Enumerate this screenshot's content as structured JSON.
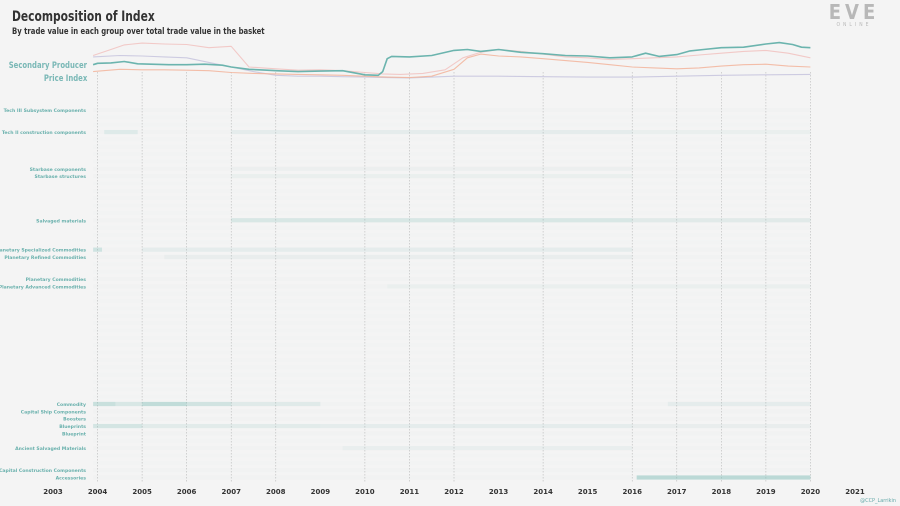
{
  "title": "Decomposition of Index",
  "subtitle": "By trade value in each group over total trade value in the basket",
  "logo": {
    "main": "EVE",
    "sub": "ONLINE"
  },
  "credit": "@CCP_Larrikin",
  "legend": {
    "line1": "Secondary Producer",
    "line2": "Price Index"
  },
  "colors": {
    "index_line": "#6bb4ae",
    "pink_line": "#f2c4c2",
    "orange_line": "#f2b39a",
    "lavender_line": "#c9c7df",
    "heat": "#7fbfb8",
    "label": "#6ab1ad",
    "faint_label": "#c8dede"
  },
  "chart_data": [
    {
      "type": "line",
      "title": "",
      "xlabel": "",
      "ylabel": "",
      "x_range": [
        2003,
        2021
      ],
      "series": [
        {
          "name": "Secondary Producer Price Index",
          "x": [
            2003.9,
            2004.0,
            2004.3,
            2004.6,
            2004.9,
            2005.2,
            2005.6,
            2006.0,
            2006.4,
            2006.8,
            2007.0,
            2007.4,
            2007.8,
            2008.0,
            2008.5,
            2009.0,
            2009.5,
            2010.0,
            2010.3,
            2010.4,
            2010.5,
            2010.6,
            2011.0,
            2011.5,
            2012.0,
            2012.3,
            2012.6,
            2013.0,
            2013.5,
            2014.0,
            2014.5,
            2015.0,
            2015.5,
            2016.0,
            2016.3,
            2016.6,
            2017.0,
            2017.3,
            2017.6,
            2018.0,
            2018.5,
            2019.0,
            2019.3,
            2019.6,
            2019.8,
            2020.0
          ],
          "y": [
            0.55,
            0.58,
            0.59,
            0.62,
            0.57,
            0.56,
            0.55,
            0.55,
            0.56,
            0.54,
            0.5,
            0.45,
            0.43,
            0.42,
            0.4,
            0.41,
            0.42,
            0.33,
            0.32,
            0.4,
            0.68,
            0.73,
            0.72,
            0.75,
            0.86,
            0.88,
            0.84,
            0.88,
            0.82,
            0.79,
            0.75,
            0.74,
            0.7,
            0.72,
            0.8,
            0.73,
            0.77,
            0.85,
            0.88,
            0.92,
            0.93,
            1.0,
            1.03,
            0.99,
            0.93,
            0.92
          ]
        },
        {
          "name": "pink",
          "x": [
            2003.9,
            2004.3,
            2004.6,
            2005.0,
            2005.5,
            2006.0,
            2006.5,
            2007.0,
            2007.4,
            2008.0,
            2008.5,
            2009.0,
            2009.5,
            2010.0,
            2010.4,
            2010.8,
            2011.3,
            2011.8,
            2012.2,
            2012.6,
            2013.0,
            2013.5,
            2014.0,
            2014.5,
            2015.0,
            2015.5,
            2016.0,
            2016.5,
            2017.0,
            2017.5,
            2018.0,
            2018.5,
            2019.0,
            2019.5,
            2020.0
          ],
          "y": [
            0.75,
            0.88,
            0.98,
            1.02,
            1.0,
            0.99,
            0.92,
            0.95,
            0.5,
            0.46,
            0.43,
            0.44,
            0.42,
            0.38,
            0.35,
            0.34,
            0.36,
            0.44,
            0.7,
            0.82,
            0.88,
            0.84,
            0.78,
            0.72,
            0.7,
            0.66,
            0.68,
            0.7,
            0.72,
            0.76,
            0.8,
            0.84,
            0.86,
            0.8,
            0.7
          ]
        },
        {
          "name": "orange",
          "x": [
            2003.9,
            2004.5,
            2005.0,
            2005.5,
            2006.0,
            2006.5,
            2007.0,
            2007.5,
            2008.0,
            2008.5,
            2009.0,
            2009.5,
            2010.0,
            2010.5,
            2011.0,
            2011.5,
            2012.0,
            2012.3,
            2012.6,
            2013.0,
            2013.5,
            2014.0,
            2014.5,
            2015.0,
            2015.5,
            2016.0,
            2016.5,
            2017.0,
            2017.5,
            2018.0,
            2018.5,
            2019.0,
            2019.5,
            2020.0
          ],
          "y": [
            0.4,
            0.45,
            0.44,
            0.44,
            0.43,
            0.42,
            0.38,
            0.36,
            0.35,
            0.34,
            0.33,
            0.32,
            0.3,
            0.28,
            0.27,
            0.3,
            0.45,
            0.7,
            0.78,
            0.74,
            0.72,
            0.68,
            0.64,
            0.6,
            0.55,
            0.5,
            0.48,
            0.46,
            0.48,
            0.52,
            0.55,
            0.56,
            0.52,
            0.5
          ]
        },
        {
          "name": "lavender",
          "x": [
            2003.9,
            2004.5,
            2005.0,
            2005.5,
            2006.0,
            2006.5,
            2007.0,
            2007.5,
            2008.0,
            2008.5,
            2009.0,
            2009.5,
            2010.0,
            2010.5,
            2011.0,
            2011.5,
            2012.0,
            2013.0,
            2014.0,
            2015.0,
            2016.0,
            2017.0,
            2018.0,
            2019.0,
            2020.0
          ],
          "y": [
            0.72,
            0.75,
            0.74,
            0.72,
            0.7,
            0.6,
            0.5,
            0.4,
            0.32,
            0.3,
            0.3,
            0.29,
            0.28,
            0.27,
            0.26,
            0.28,
            0.3,
            0.3,
            0.29,
            0.28,
            0.28,
            0.3,
            0.32,
            0.33,
            0.34
          ]
        }
      ]
    },
    {
      "type": "heatmap",
      "title": "",
      "x_ticks": [
        2003,
        2004,
        2005,
        2006,
        2007,
        2008,
        2009,
        2010,
        2011,
        2012,
        2013,
        2014,
        2015,
        2016,
        2017,
        2018,
        2019,
        2020,
        2021
      ],
      "rows": [
        {
          "label": "Tech III Subsystem Components",
          "slot": 0,
          "visible": true,
          "segments": []
        },
        {
          "label": "",
          "slot": 1,
          "visible": false,
          "segments": []
        },
        {
          "label": "",
          "slot": 2,
          "visible": false,
          "segments": []
        },
        {
          "label": "Tech II construction components",
          "slot": 3,
          "visible": true,
          "segments": [
            {
              "start": 2004.15,
              "end": 2004.9,
              "intensity": 0.16
            },
            {
              "start": 2007.0,
              "end": 2016.0,
              "intensity": 0.1
            },
            {
              "start": 2016.0,
              "end": 2020.0,
              "intensity": 0.05
            }
          ]
        },
        {
          "label": "",
          "slot": 4,
          "visible": false,
          "segments": []
        },
        {
          "label": "",
          "slot": 5,
          "visible": false,
          "segments": []
        },
        {
          "label": "",
          "slot": 6,
          "visible": false,
          "segments": []
        },
        {
          "label": "",
          "slot": 7,
          "visible": false,
          "segments": []
        },
        {
          "label": "Starbase components",
          "slot": 8,
          "visible": true,
          "segments": [
            {
              "start": 2007.0,
              "end": 2016.0,
              "intensity": 0.04
            }
          ]
        },
        {
          "label": "Starbase structures",
          "slot": 9,
          "visible": true,
          "segments": [
            {
              "start": 2007.0,
              "end": 2016.0,
              "intensity": 0.05
            }
          ]
        },
        {
          "label": "",
          "slot": 10,
          "visible": false,
          "segments": []
        },
        {
          "label": "",
          "slot": 11,
          "visible": false,
          "segments": []
        },
        {
          "label": "",
          "slot": 12,
          "visible": false,
          "segments": []
        },
        {
          "label": "",
          "slot": 13,
          "visible": false,
          "segments": []
        },
        {
          "label": "",
          "slot": 14,
          "visible": false,
          "segments": []
        },
        {
          "label": "Salvaged materials",
          "slot": 15,
          "visible": true,
          "segments": [
            {
              "start": 2007.0,
              "end": 2016.0,
              "intensity": 0.22
            },
            {
              "start": 2016.0,
              "end": 2020.0,
              "intensity": 0.14
            }
          ]
        },
        {
          "label": "",
          "slot": 16,
          "visible": false,
          "segments": []
        },
        {
          "label": "",
          "slot": 17,
          "visible": false,
          "segments": []
        },
        {
          "label": "",
          "slot": 18,
          "visible": false,
          "segments": []
        },
        {
          "label": "Planetary Specialized Commodities",
          "slot": 19,
          "visible": true,
          "segments": [
            {
              "start": 2003.9,
              "end": 2004.1,
              "intensity": 0.3
            },
            {
              "start": 2005.0,
              "end": 2016.0,
              "intensity": 0.1
            }
          ]
        },
        {
          "label": "Planetary Refined Commodities",
          "slot": 20,
          "visible": true,
          "segments": [
            {
              "start": 2005.5,
              "end": 2016.0,
              "intensity": 0.07
            }
          ]
        },
        {
          "label": "",
          "slot": 21,
          "visible": false,
          "segments": []
        },
        {
          "label": "",
          "slot": 22,
          "visible": false,
          "segments": []
        },
        {
          "label": "Planetary Commodities",
          "slot": 23,
          "visible": true,
          "segments": []
        },
        {
          "label": "Planetary Advanced Commodities",
          "slot": 24,
          "visible": true,
          "segments": [
            {
              "start": 2010.5,
              "end": 2020.0,
              "intensity": 0.05
            }
          ]
        },
        {
          "label": "",
          "slot": 25,
          "visible": false,
          "segments": []
        },
        {
          "label": "",
          "slot": 26,
          "visible": false,
          "segments": []
        },
        {
          "label": "",
          "slot": 27,
          "visible": false,
          "segments": []
        },
        {
          "label": "",
          "slot": 28,
          "visible": false,
          "segments": []
        },
        {
          "label": "",
          "slot": 29,
          "visible": false,
          "segments": []
        },
        {
          "label": "",
          "slot": 30,
          "visible": false,
          "segments": []
        },
        {
          "label": "",
          "slot": 31,
          "visible": false,
          "segments": []
        },
        {
          "label": "",
          "slot": 32,
          "visible": false,
          "segments": []
        },
        {
          "label": "",
          "slot": 33,
          "visible": false,
          "segments": []
        },
        {
          "label": "",
          "slot": 34,
          "visible": false,
          "segments": []
        },
        {
          "label": "",
          "slot": 35,
          "visible": false,
          "segments": []
        },
        {
          "label": "",
          "slot": 36,
          "visible": false,
          "segments": []
        },
        {
          "label": "",
          "slot": 37,
          "visible": false,
          "segments": []
        },
        {
          "label": "",
          "slot": 38,
          "visible": false,
          "segments": []
        },
        {
          "label": "",
          "slot": 39,
          "visible": false,
          "segments": []
        },
        {
          "label": "Commodity",
          "slot": 40,
          "visible": true,
          "segments": [
            {
              "start": 2003.9,
              "end": 2004.4,
              "intensity": 0.35
            },
            {
              "start": 2004.4,
              "end": 2005.0,
              "intensity": 0.22
            },
            {
              "start": 2005.0,
              "end": 2006.0,
              "intensity": 0.42
            },
            {
              "start": 2006.0,
              "end": 2007.0,
              "intensity": 0.28
            },
            {
              "start": 2007.0,
              "end": 2009.0,
              "intensity": 0.15
            },
            {
              "start": 2016.8,
              "end": 2020.0,
              "intensity": 0.1
            }
          ]
        },
        {
          "label": "Capital Ship Components",
          "slot": 41,
          "visible": true,
          "segments": []
        },
        {
          "label": "Boosters",
          "slot": 42,
          "visible": true,
          "segments": []
        },
        {
          "label": "Blueprints",
          "slot": 43,
          "visible": true,
          "segments": [
            {
              "start": 2003.9,
              "end": 2005.0,
              "intensity": 0.25
            },
            {
              "start": 2005.0,
              "end": 2009.0,
              "intensity": 0.12
            },
            {
              "start": 2009.0,
              "end": 2016.0,
              "intensity": 0.1
            },
            {
              "start": 2016.0,
              "end": 2020.0,
              "intensity": 0.07
            }
          ]
        },
        {
          "label": "Blueprint",
          "slot": 44,
          "visible": true,
          "segments": []
        },
        {
          "label": "",
          "slot": 45,
          "visible": false,
          "segments": []
        },
        {
          "label": "Ancient Salvaged Materials",
          "slot": 46,
          "visible": true,
          "segments": [
            {
              "start": 2009.5,
              "end": 2016.0,
              "intensity": 0.06
            }
          ]
        },
        {
          "label": "",
          "slot": 47,
          "visible": false,
          "segments": []
        },
        {
          "label": "",
          "slot": 48,
          "visible": false,
          "segments": []
        },
        {
          "label": "ed Capital Construction Components",
          "slot": 49,
          "visible": true,
          "segments": []
        },
        {
          "label": "Accessories",
          "slot": 50,
          "visible": true,
          "segments": [
            {
              "start": 2016.1,
              "end": 2020.0,
              "intensity": 0.48
            }
          ]
        }
      ]
    }
  ]
}
